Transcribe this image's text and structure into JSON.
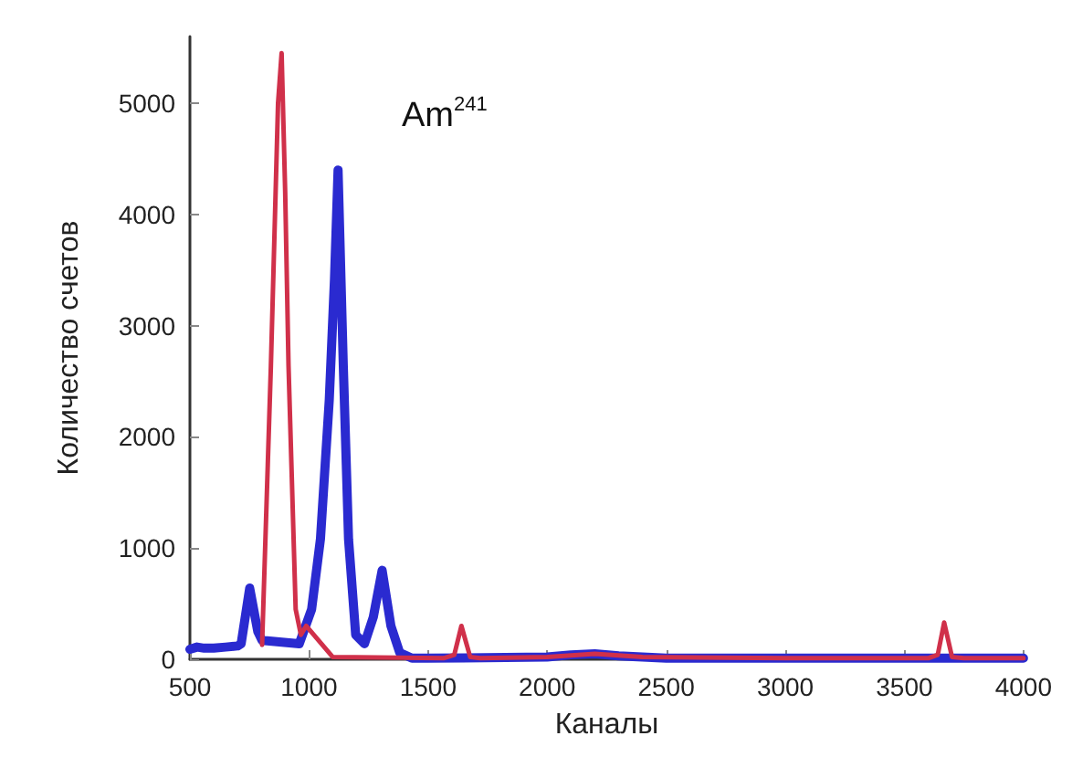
{
  "chart_data": {
    "type": "line",
    "xlabel": "Каналы",
    "ylabel": "Количество счетов",
    "annotations": [
      "Am$^{241}$"
    ],
    "xlim": [
      500,
      4000
    ],
    "xticks": [
      500,
      1000,
      1500,
      2000,
      2500,
      3000,
      3500,
      4000
    ],
    "ylim": [
      0,
      5600
    ],
    "yticks": [
      0,
      1000,
      2000,
      3000,
      4000,
      5000
    ],
    "grid": false,
    "marker": "none",
    "line_style": "solid",
    "series": [
      {
        "color": "#2a2ad0",
        "x": [
          500,
          530,
          560,
          600,
          650,
          700,
          715,
          751,
          785,
          803,
          959,
          1011,
          1048,
          1085,
          1107,
          1122,
          1144,
          1166,
          1196,
          1233,
          1270,
          1307,
          1344,
          1381,
          1432,
          1500,
          2000,
          2100,
          2200,
          2300,
          2500,
          3000,
          3500,
          4000
        ],
        "values": [
          90,
          110,
          100,
          100,
          110,
          120,
          140,
          640,
          250,
          170,
          140,
          450,
          1080,
          2330,
          3420,
          4400,
          2640,
          1080,
          220,
          140,
          380,
          800,
          300,
          60,
          10,
          10,
          20,
          40,
          50,
          30,
          10,
          10,
          10,
          10
        ]
      },
      {
        "color": "#d0304a",
        "x": [
          803,
          840,
          870,
          885,
          900,
          914,
          944,
          966,
          988,
          1100,
          1565,
          1610,
          1640,
          1677,
          1720,
          2000,
          2200,
          2400,
          3000,
          3600,
          3640,
          3667,
          3700,
          3750,
          4000
        ],
        "values": [
          130,
          2640,
          5000,
          5450,
          4200,
          2640,
          450,
          220,
          300,
          20,
          10,
          40,
          300,
          20,
          10,
          20,
          50,
          20,
          10,
          10,
          40,
          330,
          20,
          10,
          10
        ]
      }
    ]
  }
}
